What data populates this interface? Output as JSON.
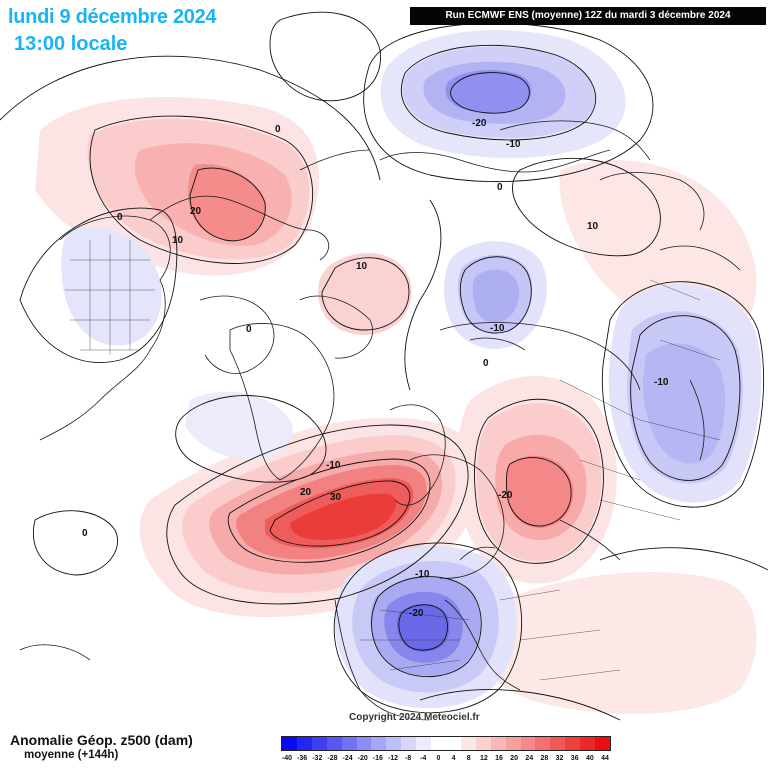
{
  "header": {
    "date": "lundi 9 décembre 2024",
    "time": "13:00 locale",
    "run": "Run ECMWF ENS (moyenne) 12Z du mardi 3 décembre 2024"
  },
  "footer": {
    "title": "Anomalie Géop. z500 (dam)",
    "subtitle": "moyenne   (+144h)",
    "copyright": "Copyright 2024 Meteociel.fr"
  },
  "legend": {
    "ticks": [
      "-40",
      "-36",
      "-32",
      "-28",
      "-24",
      "-20",
      "-16",
      "-12",
      "-8",
      "-4",
      "0",
      "4",
      "8",
      "12",
      "16",
      "20",
      "24",
      "28",
      "32",
      "36",
      "40",
      "44"
    ],
    "colors": [
      "#0b0bf0",
      "#2626f0",
      "#3f3ff2",
      "#5858f2",
      "#7272f4",
      "#8c8cf6",
      "#a6a6f8",
      "#bfbffa",
      "#d6d6fc",
      "#ececfe",
      "#ffffff",
      "#ffffff",
      "#fde6e6",
      "#fbd0d0",
      "#f9b8b8",
      "#f7a0a0",
      "#f58888",
      "#f37070",
      "#f15858",
      "#ef4040",
      "#ed2828",
      "#eb1010"
    ]
  },
  "contour_labels": [
    {
      "text": "0"
    },
    {
      "text": "0"
    },
    {
      "text": "10"
    },
    {
      "text": "20"
    },
    {
      "text": "10"
    },
    {
      "text": "-20"
    },
    {
      "text": "-10"
    },
    {
      "text": "0"
    },
    {
      "text": "10"
    },
    {
      "text": "-10"
    },
    {
      "text": "0"
    },
    {
      "text": "0"
    },
    {
      "text": "-10"
    },
    {
      "text": "-10"
    },
    {
      "text": "20"
    },
    {
      "text": "30"
    },
    {
      "text": "-20"
    },
    {
      "text": "-10"
    },
    {
      "text": "-20"
    },
    {
      "text": "0"
    }
  ]
}
